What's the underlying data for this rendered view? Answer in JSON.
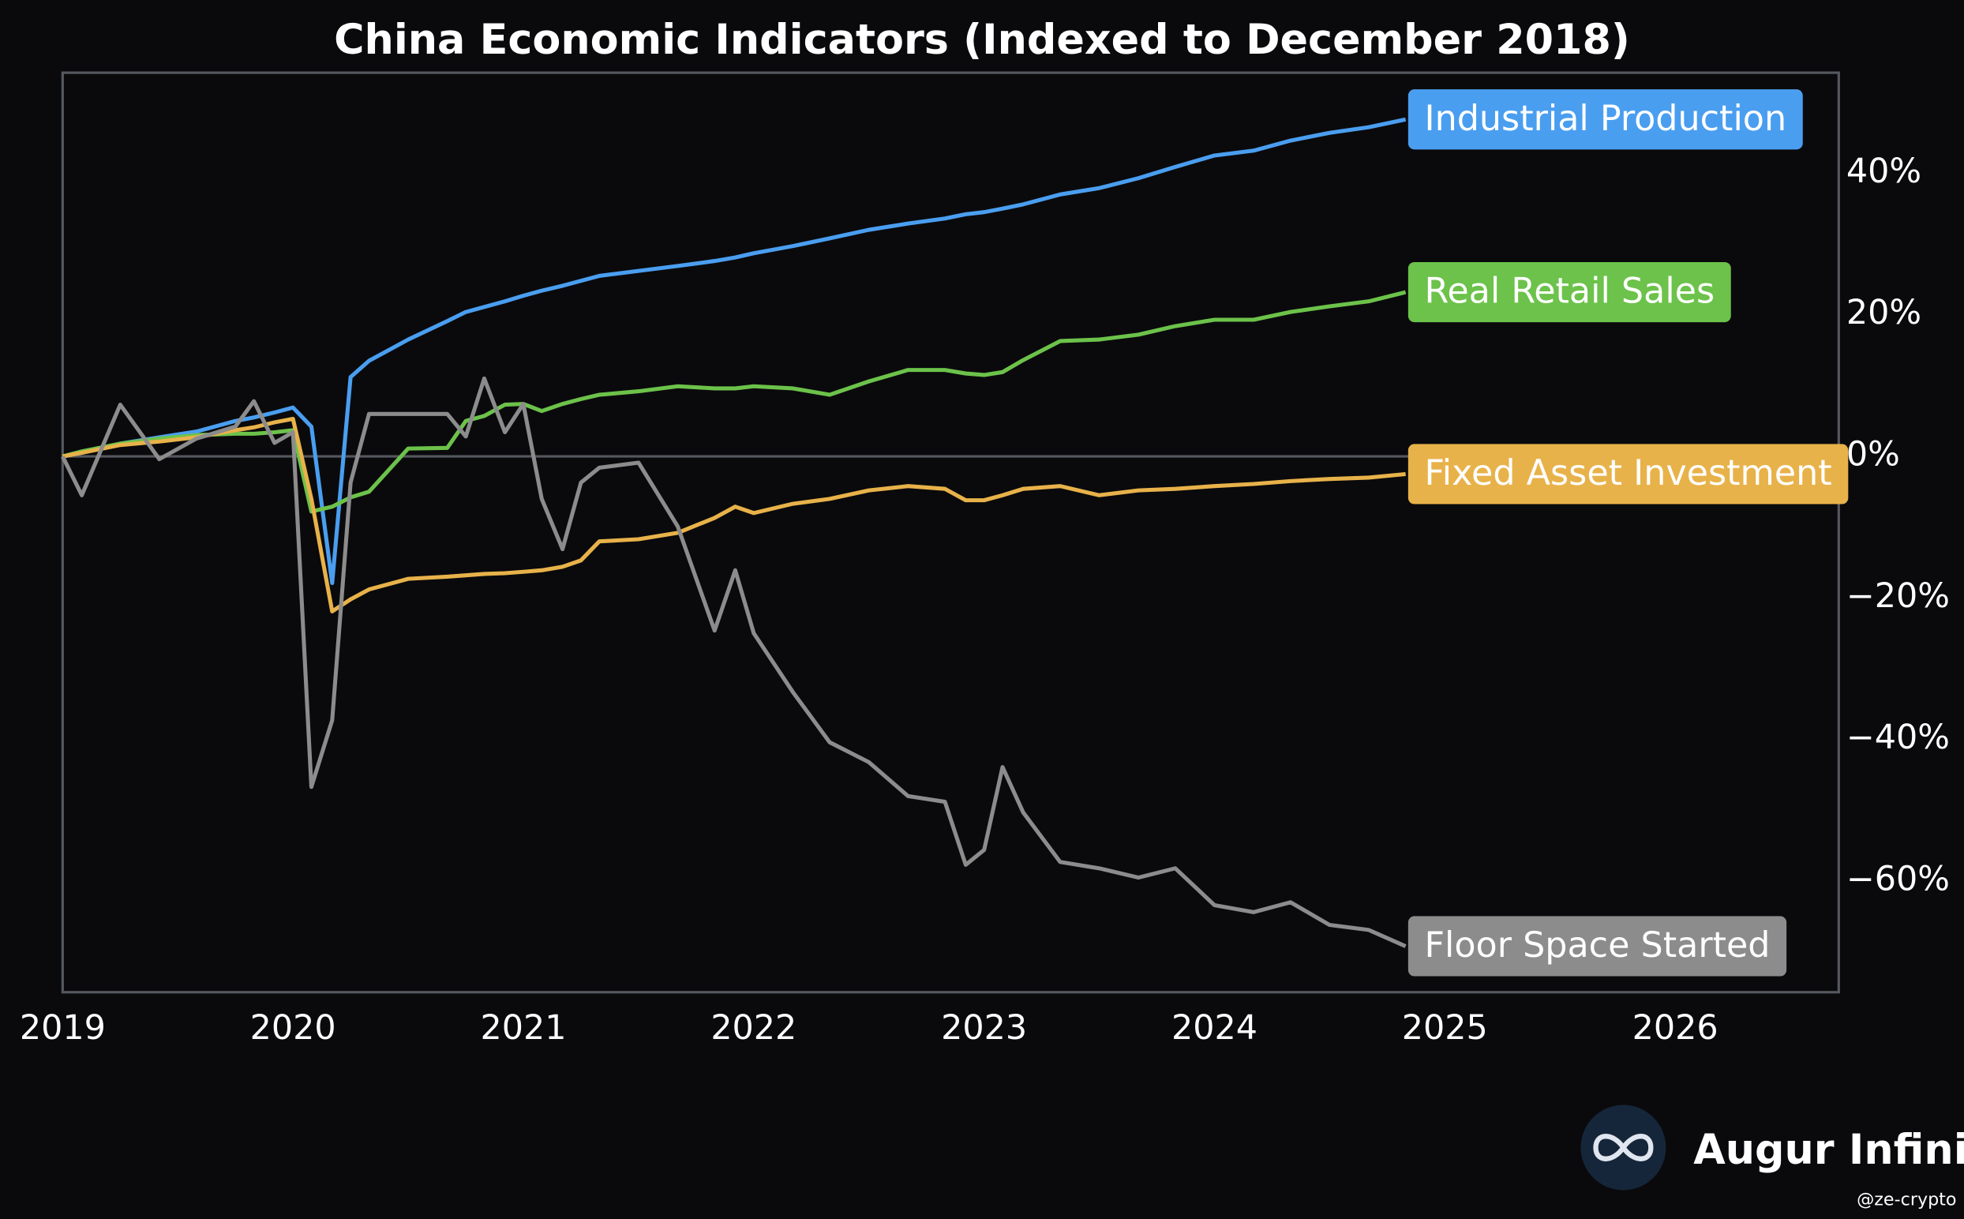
{
  "chart_data": {
    "type": "line",
    "title": "China Economic Indicators (Indexed to December 2018)",
    "x": [
      2019.0,
      2019.083,
      2019.25,
      2019.42,
      2019.58,
      2019.75,
      2019.83,
      2019.92,
      2020.0,
      2020.08,
      2020.17,
      2020.25,
      2020.33,
      2020.5,
      2020.67,
      2020.75,
      2020.83,
      2020.92,
      2021.0,
      2021.08,
      2021.17,
      2021.25,
      2021.33,
      2021.5,
      2021.67,
      2021.83,
      2021.92,
      2022.0,
      2022.17,
      2022.33,
      2022.5,
      2022.67,
      2022.83,
      2022.92,
      2023.0,
      2023.08,
      2023.17,
      2023.33,
      2023.5,
      2023.67,
      2023.83,
      2024.0,
      2024.17,
      2024.33,
      2024.5,
      2024.67,
      2024.83
    ],
    "series": [
      {
        "name": "Industrial Production",
        "color": "#4a9ef0",
        "values": [
          0,
          0.5,
          1.8,
          2.7,
          3.5,
          5,
          5.5,
          6.2,
          6.9,
          4.2,
          -17.9,
          11.2,
          13.5,
          16.5,
          19.1,
          20.4,
          21.1,
          21.9,
          22.7,
          23.4,
          24.1,
          24.8,
          25.5,
          26.2,
          26.9,
          27.6,
          28.1,
          28.7,
          29.7,
          30.8,
          32,
          32.9,
          33.6,
          34.2,
          34.5,
          35,
          35.6,
          37,
          37.9,
          39.3,
          40.9,
          42.5,
          43.2,
          44.6,
          45.7,
          46.5,
          47.6
        ]
      },
      {
        "name": "Real Retail Sales",
        "color": "#6cc24a",
        "values": [
          0,
          0.7,
          1.8,
          2.5,
          3,
          3.2,
          3.2,
          3.4,
          3.7,
          -7.8,
          -7.1,
          -5.8,
          -5,
          1.1,
          1.2,
          5,
          5.7,
          7.3,
          7.4,
          6.4,
          7.4,
          8.1,
          8.7,
          9.2,
          9.9,
          9.6,
          9.6,
          9.9,
          9.6,
          8.7,
          10.6,
          12.2,
          12.2,
          11.7,
          11.5,
          11.9,
          13.6,
          16.3,
          16.5,
          17.2,
          18.4,
          19.3,
          19.3,
          20.4,
          21.2,
          21.9,
          23.2
        ]
      },
      {
        "name": "Fixed Asset Investment",
        "color": "#e8b24a",
        "values": [
          0,
          0.5,
          1.6,
          2.1,
          2.7,
          3.7,
          4.1,
          4.8,
          5.3,
          -6,
          -21.9,
          -20.2,
          -18.8,
          -17.3,
          -17,
          -16.8,
          -16.6,
          -16.5,
          -16.3,
          -16.1,
          -15.6,
          -14.7,
          -12,
          -11.7,
          -10.8,
          -8.7,
          -7.1,
          -8,
          -6.7,
          -6,
          -4.8,
          -4.2,
          -4.6,
          -6.2,
          -6.2,
          -5.5,
          -4.6,
          -4.2,
          -5.5,
          -4.8,
          -4.6,
          -4.2,
          -3.9,
          -3.5,
          -3.2,
          -3,
          -2.5
        ]
      },
      {
        "name": "Floor Space Started",
        "color": "#8c8c8c",
        "values": [
          0,
          -5.5,
          7.3,
          -0.4,
          2.5,
          4.2,
          7.8,
          1.9,
          3.4,
          -46.7,
          -37.3,
          -3.7,
          6,
          6,
          6,
          2.8,
          11,
          3.4,
          7.4,
          -6,
          -13.1,
          -3.7,
          -1.6,
          -0.9,
          -9.9,
          -24.6,
          -16.1,
          -25,
          -33.3,
          -40.4,
          -43.2,
          -48,
          -48.8,
          -57.7,
          -55.6,
          -43.9,
          -50.3,
          -57.3,
          -58.2,
          -59.5,
          -58.2,
          -63.4,
          -64.4,
          -63,
          -66.2,
          -66.9,
          -69.2
        ]
      }
    ],
    "xlim": [
      2019,
      2026.71
    ],
    "xticks": [
      2019,
      2020,
      2021,
      2022,
      2023,
      2024,
      2025,
      2026
    ],
    "ylim": [
      -75.7,
      54.2
    ],
    "yticks": [
      {
        "value": -60,
        "label": "−60%"
      },
      {
        "value": -40,
        "label": "−40%"
      },
      {
        "value": -20,
        "label": "−20%"
      },
      {
        "value": 0,
        "label": "0%"
      },
      {
        "value": 20,
        "label": "20%"
      },
      {
        "value": 40,
        "label": "40%"
      }
    ],
    "y_axis_side": "right",
    "zero_line": true
  },
  "branding": {
    "name": "Augur Infinity",
    "handle": "@ze-crypto"
  }
}
